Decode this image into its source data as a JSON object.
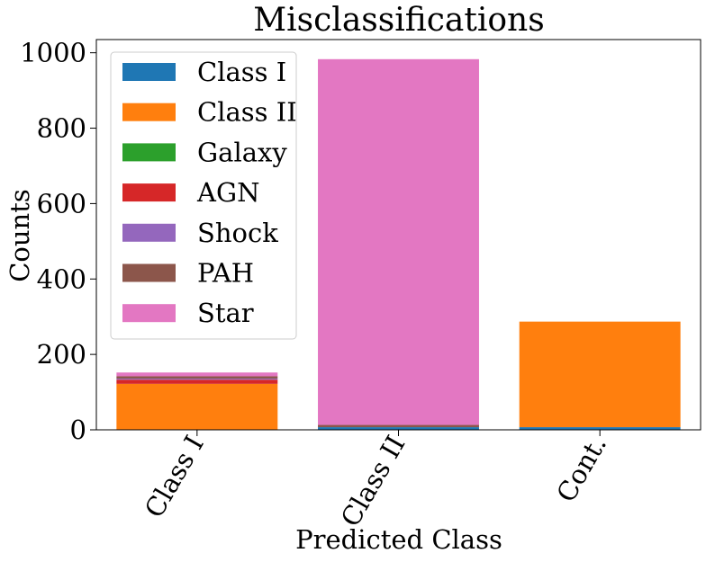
{
  "chart_data": {
    "type": "bar",
    "stacked": true,
    "title": "Misclassifications",
    "xlabel": "Predicted Class",
    "ylabel": "Counts",
    "categories": [
      "Class I",
      "Class II",
      "Cont."
    ],
    "ylim": [
      0,
      1035
    ],
    "yticks": [
      0,
      200,
      400,
      600,
      800,
      1000
    ],
    "legend_position": "top-left",
    "grid": false,
    "series": [
      {
        "name": "Class I",
        "color": "#1f77b4",
        "values": [
          0,
          7,
          7
        ]
      },
      {
        "name": "Class II",
        "color": "#ff7f0e",
        "values": [
          122,
          0,
          280
        ]
      },
      {
        "name": "Galaxy",
        "color": "#2ca02c",
        "values": [
          0,
          0,
          0
        ]
      },
      {
        "name": "AGN",
        "color": "#d62728",
        "values": [
          11,
          0,
          0
        ]
      },
      {
        "name": "Shock",
        "color": "#9467bd",
        "values": [
          3,
          0,
          0
        ]
      },
      {
        "name": "PAH",
        "color": "#8c564b",
        "values": [
          6,
          6,
          0
        ]
      },
      {
        "name": "Star",
        "color": "#e377c2",
        "values": [
          10,
          970,
          0
        ]
      }
    ]
  }
}
